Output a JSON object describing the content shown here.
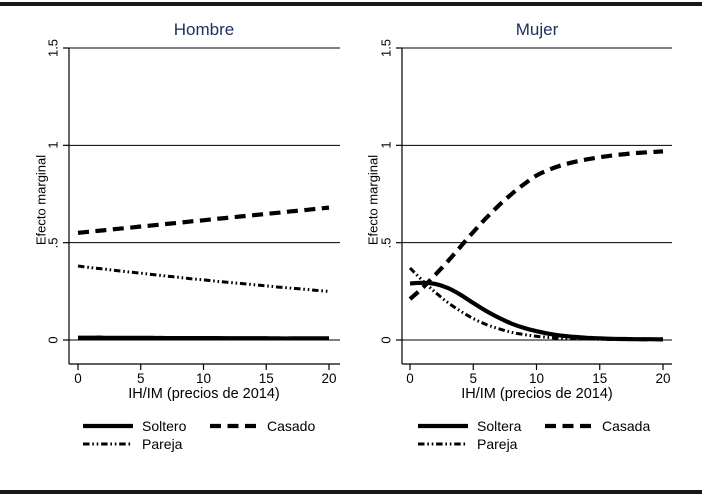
{
  "figure": {
    "background": "#ffffff",
    "rule_color": "#181818",
    "title_color": "#1d3260",
    "text_color": "#000000",
    "line_color": "#000000"
  },
  "chart_data": [
    {
      "type": "line",
      "title": "Hombre",
      "xlabel": "IH/IM (precios de 2014)",
      "ylabel": "Efecto marginal",
      "xlim": [
        0,
        20
      ],
      "ylim": [
        0,
        1.5
      ],
      "grid": true,
      "legend_position": "bottom",
      "xticks": [
        0,
        5,
        10,
        15,
        20
      ],
      "xtick_labels": [
        "0",
        "5",
        "10",
        "15",
        "20"
      ],
      "yticks": [
        0,
        0.5,
        1,
        1.5
      ],
      "ytick_labels": [
        "0",
        ".5",
        "1",
        "1.5"
      ],
      "x": [
        0,
        1,
        2,
        3,
        4,
        5,
        6,
        7,
        8,
        9,
        10,
        11,
        12,
        13,
        14,
        15,
        16,
        17,
        18,
        19,
        20
      ],
      "series": [
        {
          "name": "Soltero",
          "style": "solid",
          "values": [
            0.012,
            0.012,
            0.012,
            0.011,
            0.011,
            0.011,
            0.011,
            0.01,
            0.01,
            0.01,
            0.01,
            0.01,
            0.009,
            0.009,
            0.009,
            0.009,
            0.008,
            0.008,
            0.008,
            0.008,
            0.008
          ]
        },
        {
          "name": "Casado",
          "style": "dashed",
          "values": [
            0.55,
            0.557,
            0.563,
            0.57,
            0.576,
            0.583,
            0.589,
            0.596,
            0.602,
            0.609,
            0.615,
            0.622,
            0.628,
            0.635,
            0.641,
            0.648,
            0.654,
            0.661,
            0.667,
            0.674,
            0.68
          ]
        },
        {
          "name": "Pareja",
          "style": "dashdotdot",
          "values": [
            0.38,
            0.372,
            0.365,
            0.357,
            0.35,
            0.343,
            0.336,
            0.329,
            0.322,
            0.315,
            0.309,
            0.302,
            0.296,
            0.29,
            0.284,
            0.278,
            0.272,
            0.266,
            0.261,
            0.255,
            0.25
          ]
        }
      ]
    },
    {
      "type": "line",
      "title": "Mujer",
      "xlabel": "IH/IM (precios de 2014)",
      "ylabel": "Efecto marginal",
      "xlim": [
        0,
        20
      ],
      "ylim": [
        0,
        1.5
      ],
      "grid": true,
      "legend_position": "bottom",
      "xticks": [
        0,
        5,
        10,
        15,
        20
      ],
      "xtick_labels": [
        "0",
        "5",
        "10",
        "15",
        "20"
      ],
      "yticks": [
        0,
        0.5,
        1,
        1.5
      ],
      "ytick_labels": [
        "0",
        ".5",
        "1",
        "1.5"
      ],
      "x": [
        0,
        1,
        2,
        3,
        4,
        5,
        6,
        7,
        8,
        9,
        10,
        11,
        12,
        13,
        14,
        15,
        16,
        17,
        18,
        19,
        20
      ],
      "series": [
        {
          "name": "Soltera",
          "style": "solid",
          "values": [
            0.29,
            0.294,
            0.288,
            0.267,
            0.232,
            0.19,
            0.15,
            0.115,
            0.085,
            0.062,
            0.045,
            0.032,
            0.022,
            0.016,
            0.011,
            0.008,
            0.006,
            0.005,
            0.004,
            0.004,
            0.003
          ]
        },
        {
          "name": "Casada",
          "style": "dashed",
          "values": [
            0.21,
            0.268,
            0.335,
            0.405,
            0.48,
            0.555,
            0.625,
            0.69,
            0.748,
            0.8,
            0.845,
            0.875,
            0.898,
            0.915,
            0.928,
            0.939,
            0.948,
            0.955,
            0.961,
            0.965,
            0.969
          ]
        },
        {
          "name": "Pareja",
          "style": "dashdotdot",
          "values": [
            0.37,
            0.305,
            0.245,
            0.192,
            0.148,
            0.11,
            0.08,
            0.058,
            0.04,
            0.028,
            0.019,
            0.013,
            0.009,
            0.007,
            0.005,
            0.004,
            0.003,
            0.003,
            0.002,
            0.002,
            0.002
          ]
        }
      ]
    }
  ]
}
